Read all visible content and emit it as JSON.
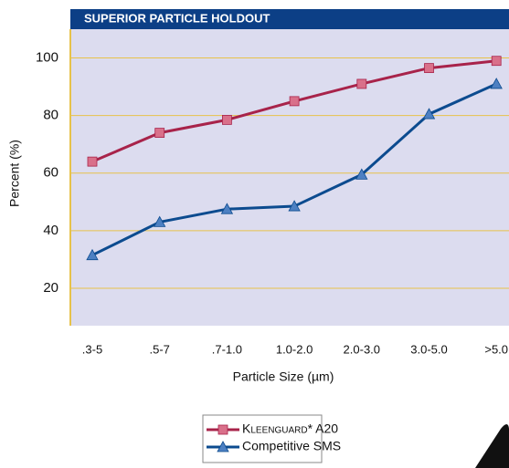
{
  "chart_data": {
    "type": "line",
    "title": "SUPERIOR PARTICLE HOLDOUT",
    "x_label": "Particle Size (µm)",
    "y_label": "Percent (%)",
    "categories": [
      ".3-5",
      ".5-7",
      ".7-1.0",
      "1.0-2.0",
      "2.0-3.0",
      "3.0-5.0",
      ">5.0"
    ],
    "series": [
      {
        "name": "Kleenguard* A20",
        "color": "#a8234a",
        "marker": "square",
        "marker_color": "#d9708a",
        "values": [
          64,
          74,
          78.5,
          85,
          91,
          96.5,
          99
        ]
      },
      {
        "name": "Competitive SMS",
        "color": "#0c4b8f",
        "marker": "triangle",
        "marker_color": "#4d80c2",
        "values": [
          31.5,
          43,
          47.5,
          48.5,
          59.5,
          80.5,
          91
        ]
      }
    ],
    "ylim": [
      7,
      110
    ],
    "yticks": [
      20,
      40,
      60,
      80,
      100
    ],
    "grid": true
  }
}
